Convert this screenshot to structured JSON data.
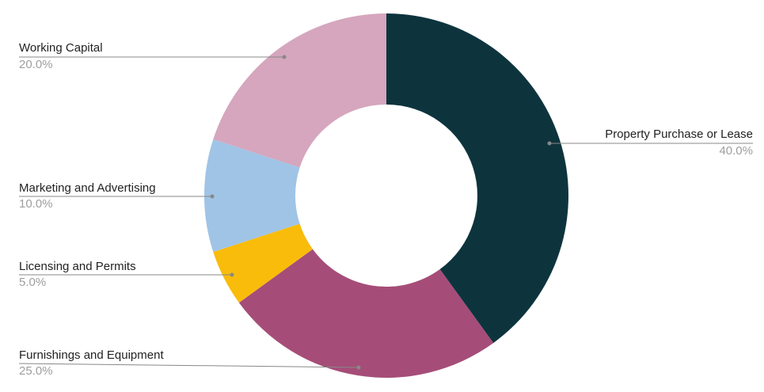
{
  "chart_data": {
    "type": "donut",
    "categories": [
      "Property Purchase or Lease",
      "Furnishings and Equipment",
      "Licensing and Permits",
      "Marketing and Advertising",
      "Working Capital"
    ],
    "values": [
      40,
      25,
      5,
      10,
      20
    ],
    "value_labels": [
      "40.0%",
      "25.0%",
      "5.0%",
      "10.0%",
      "20.0%"
    ],
    "colors": [
      "#0d343d",
      "#a54d78",
      "#f9bc0a",
      "#a0c4e6",
      "#d5a6bd"
    ]
  }
}
